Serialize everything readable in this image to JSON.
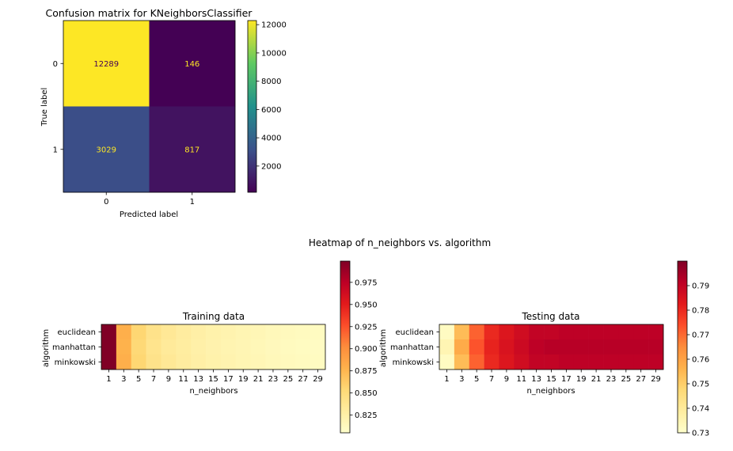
{
  "chart_data": [
    {
      "type": "heatmap",
      "title": "Confusion matrix for KNeighborsClassifier",
      "xlabel": "Predicted label",
      "ylabel": "True label",
      "x_categories": [
        "0",
        "1"
      ],
      "y_categories": [
        "0",
        "1"
      ],
      "values": [
        [
          12289,
          146
        ],
        [
          3029,
          817
        ]
      ],
      "colormap": "viridis",
      "colorbar": {
        "range": [
          146,
          12289
        ],
        "ticks": [
          2000,
          4000,
          6000,
          8000,
          10000,
          12000
        ]
      }
    },
    {
      "type": "heatmap",
      "suptitle": "Heatmap of n_neighbors vs. algorithm",
      "title": "Training data",
      "xlabel": "n_neighbors",
      "ylabel": "algorithm",
      "x_categories": [
        "1",
        "3",
        "5",
        "7",
        "9",
        "11",
        "13",
        "15",
        "17",
        "19",
        "21",
        "23",
        "25",
        "27",
        "29"
      ],
      "y_categories": [
        "euclidean",
        "manhattan",
        "minkowski"
      ],
      "values": [
        [
          0.999,
          0.88,
          0.855,
          0.842,
          0.835,
          0.83,
          0.826,
          0.823,
          0.821,
          0.819,
          0.817,
          0.815,
          0.813,
          0.812,
          0.811
        ],
        [
          0.999,
          0.878,
          0.853,
          0.84,
          0.833,
          0.829,
          0.825,
          0.822,
          0.82,
          0.818,
          0.816,
          0.814,
          0.812,
          0.811,
          0.81
        ],
        [
          0.999,
          0.88,
          0.855,
          0.842,
          0.835,
          0.83,
          0.826,
          0.823,
          0.821,
          0.819,
          0.817,
          0.815,
          0.813,
          0.812,
          0.811
        ]
      ],
      "colormap": "YlOrRd",
      "colorbar": {
        "range": [
          0.805,
          0.999
        ],
        "ticks": [
          0.825,
          0.85,
          0.875,
          0.9,
          0.925,
          0.95,
          0.975
        ]
      }
    },
    {
      "type": "heatmap",
      "title": "Testing data",
      "xlabel": "n_neighbors",
      "ylabel": "algorithm",
      "x_categories": [
        "1",
        "3",
        "5",
        "7",
        "9",
        "11",
        "13",
        "15",
        "17",
        "19",
        "21",
        "23",
        "25",
        "27",
        "29"
      ],
      "y_categories": [
        "euclidean",
        "manhattan",
        "minkowski"
      ],
      "values": [
        [
          0.732,
          0.754,
          0.771,
          0.78,
          0.784,
          0.787,
          0.79,
          0.79,
          0.791,
          0.791,
          0.791,
          0.791,
          0.791,
          0.791,
          0.791
        ],
        [
          0.735,
          0.758,
          0.773,
          0.781,
          0.785,
          0.788,
          0.791,
          0.792,
          0.792,
          0.792,
          0.792,
          0.792,
          0.792,
          0.792,
          0.792
        ],
        [
          0.732,
          0.754,
          0.771,
          0.78,
          0.784,
          0.787,
          0.79,
          0.79,
          0.791,
          0.791,
          0.791,
          0.791,
          0.791,
          0.791,
          0.791
        ]
      ],
      "colormap": "YlOrRd",
      "colorbar": {
        "range": [
          0.73,
          0.8
        ],
        "ticks": [
          0.73,
          0.74,
          0.75,
          0.76,
          0.77,
          0.78,
          0.79
        ]
      }
    }
  ]
}
